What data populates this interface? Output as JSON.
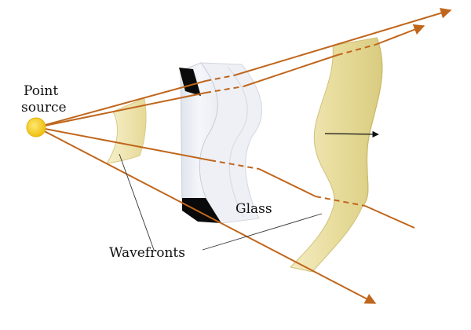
{
  "labels": {
    "point_source_line1": "Point",
    "point_source_line2": "source",
    "glass": "Glass",
    "wavefronts": "Wavefronts"
  },
  "colors": {
    "ray": "#c0661c",
    "source": "#f2c81a",
    "wavefront_fill": "#ede3a4",
    "wavefront_edge": "#d2c473",
    "glass_dark": "#0a0a0a",
    "glass_light": "#e6e9f0",
    "pointer_line": "#333333"
  }
}
